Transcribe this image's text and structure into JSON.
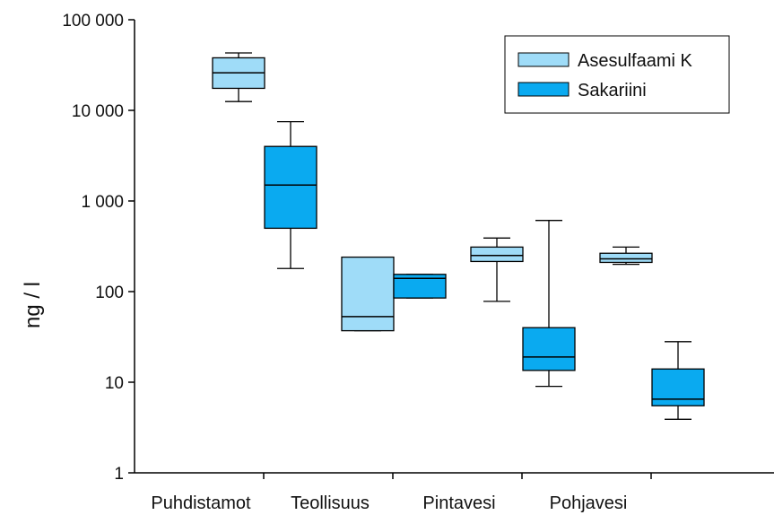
{
  "chart_data": {
    "type": "box",
    "title": "",
    "xlabel": "",
    "ylabel": "ng / l",
    "yscale": "log",
    "ylim": [
      1,
      100000
    ],
    "yticks": [
      {
        "value": 1,
        "label": "1"
      },
      {
        "value": 10,
        "label": "10"
      },
      {
        "value": 100,
        "label": "100"
      },
      {
        "value": 1000,
        "label": "1 000"
      },
      {
        "value": 10000,
        "label": "10 000"
      },
      {
        "value": 100000,
        "label": "100 000"
      }
    ],
    "categories": [
      "Puhdistamot",
      "Teollisuus",
      "Pintavesi",
      "Pohjavesi"
    ],
    "grid": false,
    "legend_position": "top-right",
    "series": [
      {
        "name": "Asesulfaami K",
        "color": "#9fdcf8",
        "boxes": [
          {
            "min": 12500,
            "q1": 17500,
            "median": 26000,
            "q3": 38000,
            "max": 43000
          },
          {
            "min": 37,
            "q1": 37,
            "median": 53,
            "q3": 240,
            "max": 240
          },
          {
            "min": 78,
            "q1": 215,
            "median": 250,
            "q3": 310,
            "max": 390
          },
          {
            "min": 200,
            "q1": 210,
            "median": 230,
            "q3": 265,
            "max": 310
          }
        ]
      },
      {
        "name": "Sakariini",
        "color": "#0aaaf0",
        "boxes": [
          {
            "min": 180,
            "q1": 500,
            "median": 1500,
            "q3": 4000,
            "max": 7500
          },
          {
            "min": 85,
            "q1": 85,
            "median": 140,
            "q3": 155,
            "max": 155
          },
          {
            "min": 9,
            "q1": 13.5,
            "median": 19,
            "q3": 40,
            "max": 610
          },
          {
            "min": 3.9,
            "q1": 5.5,
            "median": 6.5,
            "q3": 14,
            "max": 28
          }
        ]
      }
    ]
  }
}
